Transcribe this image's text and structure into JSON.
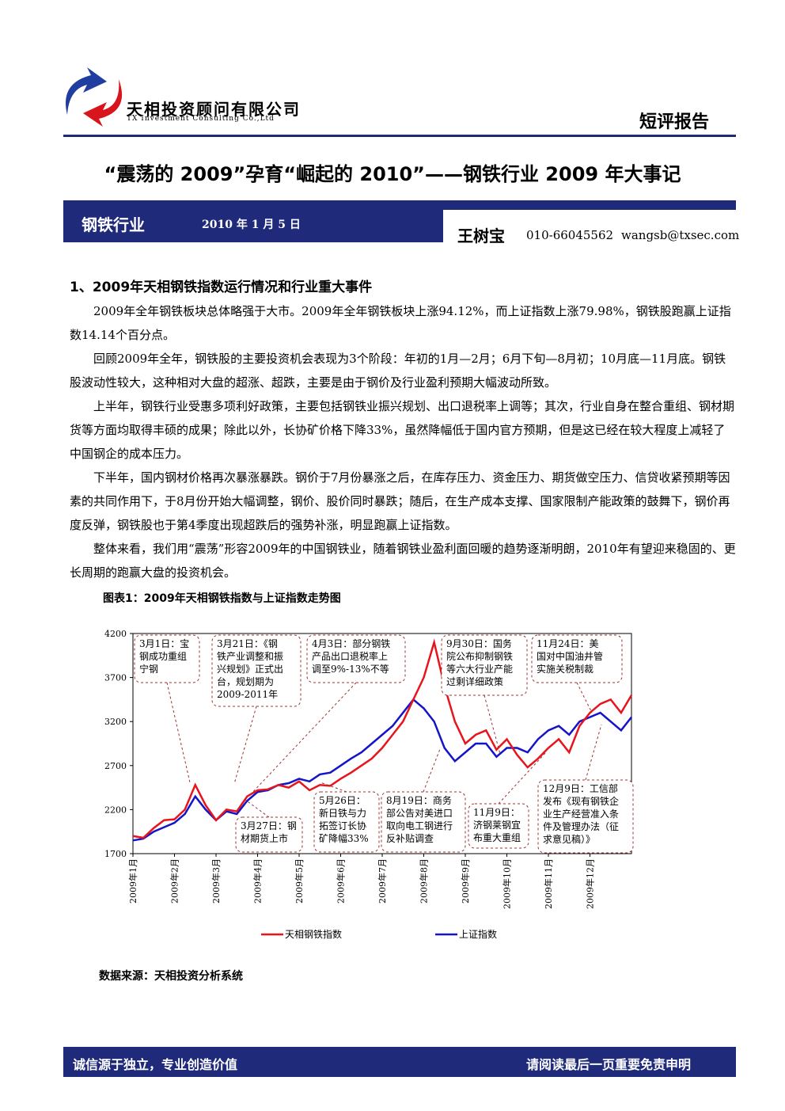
{
  "header": {
    "company": "天相投资顾问有限公司",
    "company_en": "TX Investment Consulting Co.,Ltd",
    "report_type": "短评报告"
  },
  "title": "“震荡的 2009”孕育“崛起的 2010”——钢铁行业 2009 年大事记",
  "banner": {
    "industry": "钢铁行业",
    "date": "2010 年 1 月 5 日",
    "author": "王树宝",
    "phone": "010-66045562",
    "email": "wangsb@txsec.com"
  },
  "section_heading": "1、2009年天相钢铁指数运行情况和行业重大事件",
  "paragraphs": [
    "2009年全年钢铁板块总体略强于大市。2009年全年钢铁板块上涨94.12%，而上证指数上涨79.98%，钢铁股跑赢上证指数14.14个百分点。",
    "回顾2009年全年，钢铁股的主要投资机会表现为3个阶段：年初的1月—2月；6月下旬—8月初；10月底—11月底。钢铁股波动性较大，这种相对大盘的超涨、超跌，主要是由于钢价及行业盈利预期大幅波动所致。",
    "上半年，钢铁行业受惠多项利好政策，主要包括钢铁业振兴规划、出口退税率上调等；其次，行业自身在整合重组、钢材期货等方面均取得丰硕的成果；除此以外，长协矿价格下降33%，虽然降幅低于国内官方预期，但是这已经在较大程度上减轻了中国钢企的成本压力。",
    "下半年，国内钢材价格再次暴涨暴跌。钢价于7月份暴涨之后，在库存压力、资金压力、期货做空压力、信贷收紧预期等因素的共同作用下，于8月份开始大幅调整，钢价、股价同时暴跌；随后，在生产成本支撑、国家限制产能政策的鼓舞下，钢价再度反弹，钢铁股也于第4季度出现超跌后的强势补涨，明显跑赢上证指数。",
    "整体来看，我们用“震荡”形容2009年的中国钢铁业，随着钢铁业盈利面回暖的趋势逐渐明朗，2010年有望迎来稳固的、更长周期的跑赢大盘的投资机会。"
  ],
  "chart_data": {
    "type": "line",
    "title": "图表1：2009年天相钢铁指数与上证指数走势图",
    "categories": [
      "2009年1月",
      null,
      null,
      null,
      "2009年2月",
      null,
      null,
      null,
      "2009年3月",
      null,
      null,
      null,
      "2009年4月",
      null,
      null,
      null,
      "2009年5月",
      null,
      null,
      null,
      "2009年6月",
      null,
      null,
      null,
      "2009年7月",
      null,
      null,
      null,
      "2009年8月",
      null,
      null,
      null,
      "2009年9月",
      null,
      null,
      null,
      "2009年10月",
      null,
      null,
      null,
      "2009年11月",
      null,
      null,
      null,
      "2009年12月",
      null,
      null,
      null,
      null
    ],
    "series": [
      {
        "name": "天相钢铁指数",
        "color": "#e8141c",
        "values": [
          1900,
          1880,
          1990,
          2080,
          2090,
          2200,
          2480,
          2250,
          2080,
          2200,
          2180,
          2350,
          2420,
          2430,
          2480,
          2450,
          2520,
          2420,
          2480,
          2470,
          2550,
          2620,
          2700,
          2780,
          2900,
          3050,
          3200,
          3450,
          3700,
          4100,
          3600,
          3200,
          2950,
          3050,
          3100,
          2880,
          3000,
          2820,
          2680,
          2780,
          2900,
          3000,
          2850,
          3150,
          3300,
          3400,
          3450,
          3300,
          3500
        ]
      },
      {
        "name": "上证指数",
        "color": "#1414c8",
        "values": [
          1850,
          1870,
          1950,
          2000,
          2050,
          2150,
          2350,
          2200,
          2080,
          2180,
          2150,
          2300,
          2400,
          2420,
          2480,
          2500,
          2550,
          2520,
          2600,
          2620,
          2700,
          2780,
          2850,
          2950,
          3050,
          3150,
          3300,
          3450,
          3350,
          3200,
          2900,
          2750,
          2850,
          2950,
          2950,
          2800,
          2900,
          2900,
          2850,
          3000,
          3100,
          3150,
          3050,
          3200,
          3250,
          3300,
          3200,
          3100,
          3250
        ]
      }
    ],
    "ylim": [
      1700,
      4200
    ],
    "yticks": [
      1700,
      2200,
      2700,
      3200,
      3700,
      4200
    ],
    "annotations": [
      [
        "3月1日：宝",
        "钢成功重组",
        "宁钢"
      ],
      [
        "3月21日：《钢",
        "铁产业调整和振",
        "兴规划》正式出",
        "台，规划期为",
        "2009-2011年"
      ],
      [
        "4月3日：部分钢铁",
        "产品出口退税率上",
        "调至9%-13%不等"
      ],
      [
        "9月30日：国务",
        "院公布抑制钢铁",
        "等六大行业产能",
        "过剩详细政策"
      ],
      [
        "11月24日：美",
        "国对中国油井管",
        "实施关税制裁"
      ],
      [
        "3月27日：钢",
        "材期货上市"
      ],
      [
        "5月26日：",
        "新日铁与力",
        "拓签订长协",
        "矿降幅33%"
      ],
      [
        "8月19日：商务",
        "部公告对美进口",
        "取向电工钢进行",
        "反补贴调查"
      ],
      [
        "11月9日：",
        "济钢莱钢宜",
        "布重大重组"
      ],
      [
        "12月9日：工信部",
        "发布《现有钢铁企",
        "业生产经营准入条",
        "件及管理办法（征",
        "求意见稿）》"
      ]
    ],
    "source": "数据来源：天相投资分析系统"
  },
  "footer": {
    "left": "诚信源于独立，专业创造价值",
    "right": "请阅读最后一页重要免责申明"
  }
}
